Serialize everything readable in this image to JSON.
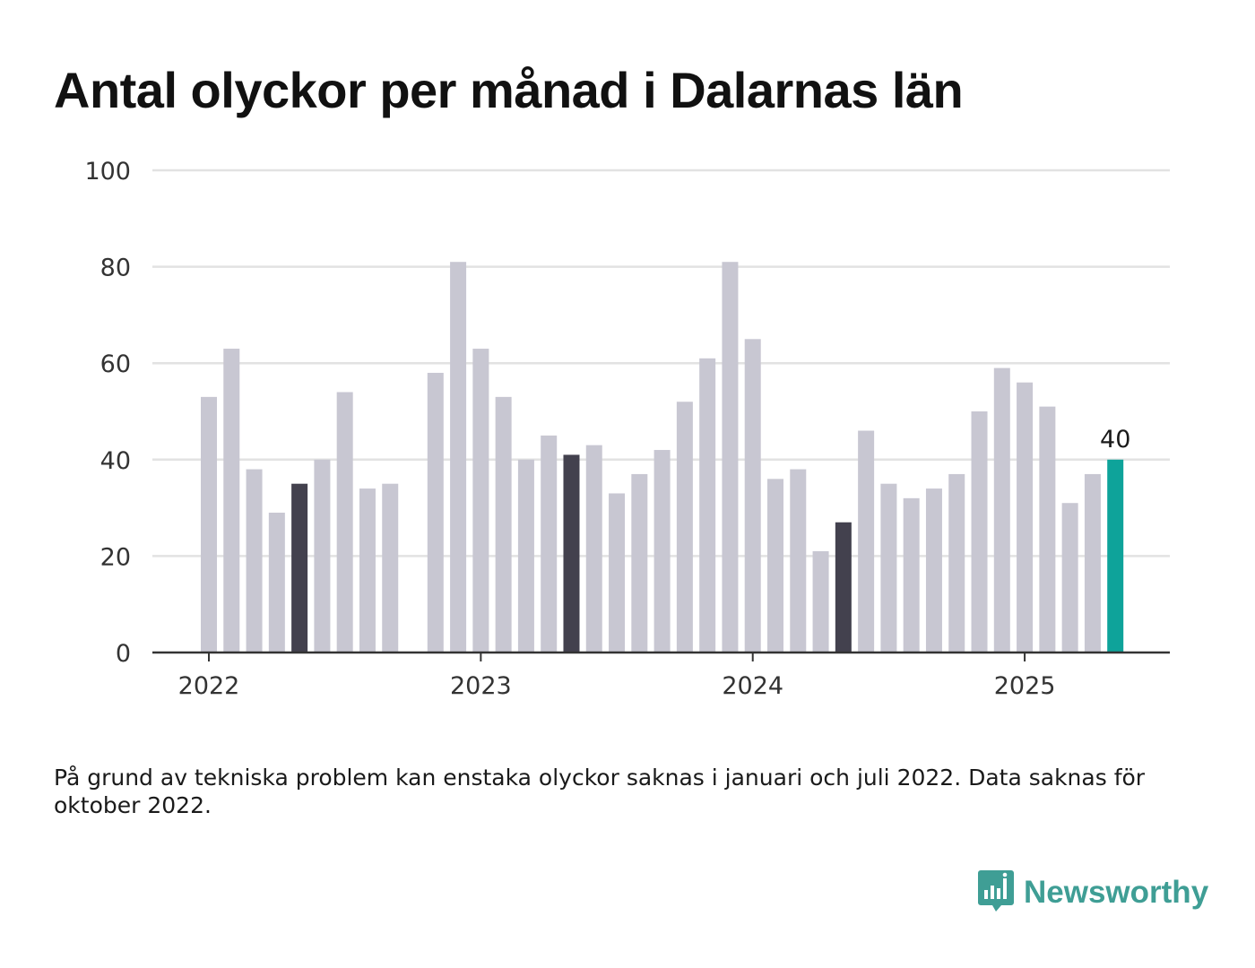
{
  "title": "Antal olyckor per månad i Dalarnas län",
  "note": "På grund av tekniska problem kan enstaka olyckor saknas i januari och juli 2022. Data saknas för oktober 2022.",
  "brand": {
    "name": "Newsworthy",
    "icon": "newsworthy-logo-icon",
    "color": "#3f9e95"
  },
  "colors": {
    "bar": "#c8c7d2",
    "highlight": "#43414e",
    "latest": "#0ea39a",
    "grid": "#e2e2e2",
    "axis": "#333333"
  },
  "chart_data": {
    "type": "bar",
    "title": "Antal olyckor per månad i Dalarnas län",
    "xlabel": "",
    "ylabel": "",
    "ylim": [
      0,
      100
    ],
    "yticks": [
      0,
      20,
      40,
      60,
      80,
      100
    ],
    "grid": true,
    "xticks": [
      "2022",
      "2023",
      "2024",
      "2025"
    ],
    "categories": [
      "2022-01",
      "2022-02",
      "2022-03",
      "2022-04",
      "2022-05",
      "2022-06",
      "2022-07",
      "2022-08",
      "2022-09",
      "2022-10",
      "2022-11",
      "2022-12",
      "2023-01",
      "2023-02",
      "2023-03",
      "2023-04",
      "2023-05",
      "2023-06",
      "2023-07",
      "2023-08",
      "2023-09",
      "2023-10",
      "2023-11",
      "2023-12",
      "2024-01",
      "2024-02",
      "2024-03",
      "2024-04",
      "2024-05",
      "2024-06",
      "2024-07",
      "2024-08",
      "2024-09",
      "2024-10",
      "2024-11",
      "2024-12",
      "2025-01",
      "2025-02",
      "2025-03",
      "2025-04",
      "2025-05"
    ],
    "values": [
      53,
      63,
      38,
      29,
      35,
      40,
      54,
      34,
      35,
      null,
      58,
      81,
      63,
      53,
      40,
      45,
      41,
      43,
      33,
      37,
      42,
      52,
      61,
      81,
      65,
      36,
      38,
      21,
      27,
      46,
      35,
      32,
      34,
      37,
      50,
      59,
      56,
      51,
      31,
      37,
      40
    ],
    "highlighted": [
      "2022-05",
      "2023-05",
      "2024-05"
    ],
    "latest": "2025-05",
    "data_labels": [
      {
        "category": "2025-05",
        "text": "40"
      }
    ]
  }
}
